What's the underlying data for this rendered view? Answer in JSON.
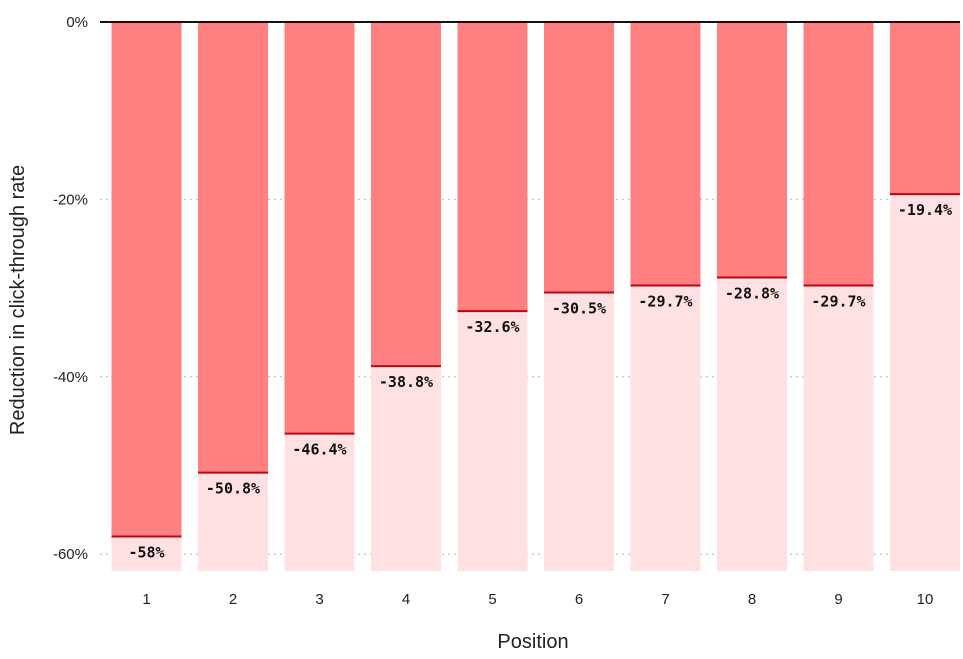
{
  "chart_data": {
    "type": "bar",
    "xlabel": "Position",
    "ylabel": "Reduction in click-through rate",
    "categories": [
      "1",
      "2",
      "3",
      "4",
      "5",
      "6",
      "7",
      "8",
      "9",
      "10"
    ],
    "values": [
      -58,
      -50.8,
      -46.4,
      -38.8,
      -32.6,
      -30.5,
      -29.7,
      -28.8,
      -29.7,
      -19.4
    ],
    "value_labels": [
      "-58%",
      "-50.8%",
      "-46.4%",
      "-38.8%",
      "-32.6%",
      "-30.5%",
      "-29.7%",
      "-28.8%",
      "-29.7%",
      "-19.4%"
    ],
    "yticks": [
      0,
      -20,
      -40,
      -60
    ],
    "ytick_labels": [
      "0%",
      "-20%",
      "-40%",
      "-60%"
    ],
    "ylim": [
      -62,
      0
    ],
    "grid": true,
    "legend": "none",
    "colors": {
      "reduction": "#ff8080",
      "remaining": "#ffe0e3",
      "value_line": "#c8000f",
      "zero_line": "#111111",
      "grid": "#c8c8c8"
    }
  }
}
